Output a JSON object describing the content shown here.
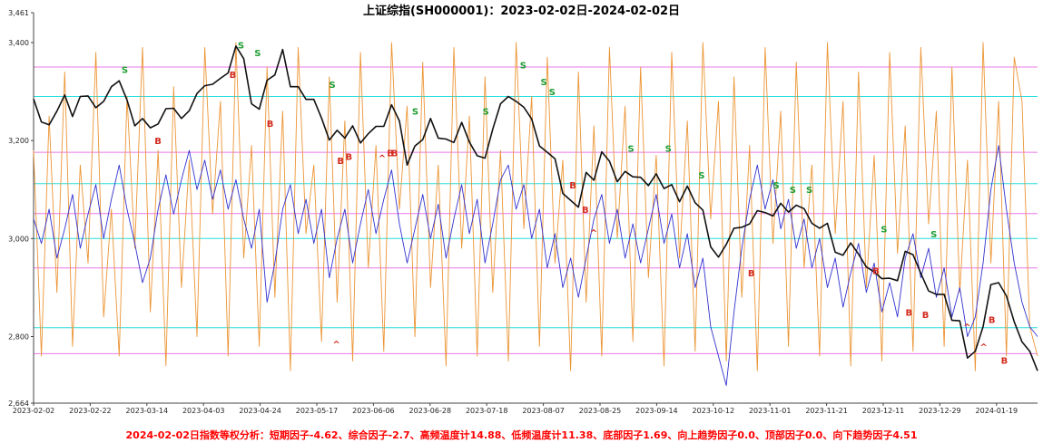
{
  "chart_data": {
    "type": "line",
    "title": "上证综指(SH000001)：2023-02-02日-2024-02-02日",
    "footer": "2024-02-02日指数等权分析：短期因子-4.62、综合因子-2.7、高频温度计14.88、低频温度计11.38、底部因子1.69、向上趋势因子0.0、顶部因子0.0、向下趋势因子4.51",
    "xlabel": "",
    "ylabel": "",
    "ylim": [
      2664,
      3461
    ],
    "x_domain_days": 242,
    "grid": "horizontal-reference-lines-only",
    "legend": "none",
    "colors": {
      "title": "#000000",
      "footer": "#ff0000",
      "axis": "#444444",
      "tick_text": "#222222"
    },
    "y_ticks": [
      {
        "label": "3,461",
        "value": 3461
      },
      {
        "label": "3,400",
        "value": 3400
      },
      {
        "label": "3,200",
        "value": 3200
      },
      {
        "label": "3,000",
        "value": 3000
      },
      {
        "label": "2,800",
        "value": 2800
      },
      {
        "label": "2,664",
        "value": 2664
      }
    ],
    "x_tick_labels": [
      "2023-02-02",
      "2023-02-22",
      "2023-03-14",
      "2023-04-03",
      "2023-04-24",
      "2023-05-17",
      "2023-06-06",
      "2023-06-28",
      "2023-07-18",
      "2023-08-07",
      "2023-08-25",
      "2023-09-14",
      "2023-10-12",
      "2023-11-01",
      "2023-11-21",
      "2023-12-11",
      "2023-12-29",
      "2024-01-19"
    ],
    "hlines": [
      {
        "name": "resistance-levels",
        "color": "#e879e8",
        "values": [
          3350,
          3176,
          3051,
          2940,
          2765
        ]
      },
      {
        "name": "support-levels",
        "color": "#2adede",
        "values": [
          3290,
          3112,
          3000,
          2818
        ]
      }
    ],
    "series": [
      {
        "name": "index-close",
        "color": "#111111",
        "width": 1.6,
        "values": [
          3285,
          3238,
          3232,
          3260,
          3293,
          3249,
          3290,
          3291,
          3267,
          3280,
          3310,
          3322,
          3283,
          3230,
          3245,
          3226,
          3234,
          3265,
          3266,
          3245,
          3261,
          3296,
          3312,
          3315,
          3327,
          3338,
          3393,
          3367,
          3275,
          3264,
          3323,
          3334,
          3386,
          3310,
          3310,
          3284,
          3284,
          3246,
          3201,
          3221,
          3205,
          3230,
          3195,
          3214,
          3229,
          3229,
          3273,
          3240,
          3150,
          3189,
          3202,
          3245,
          3205,
          3203,
          3196,
          3237,
          3197,
          3169,
          3164,
          3223,
          3275,
          3290,
          3280,
          3268,
          3244,
          3189,
          3176,
          3163,
          3092,
          3078,
          3064,
          3135,
          3119,
          3177,
          3158,
          3116,
          3137,
          3126,
          3125,
          3108,
          3132,
          3102,
          3110,
          3075,
          3107,
          3073,
          3058,
          2983,
          2962,
          2988,
          3021,
          3023,
          3030,
          3057,
          3053,
          3046,
          3072,
          3054,
          3068,
          3061,
          3031,
          3021,
          3031,
          2972,
          2966,
          2991,
          2968,
          2942,
          2932,
          2918,
          2919,
          2914,
          2974,
          2967,
          2929,
          2893,
          2886,
          2886,
          2833,
          2832,
          2756,
          2770,
          2820,
          2906,
          2910,
          2883,
          2830,
          2789,
          2770,
          2730
        ]
      },
      {
        "name": "low-freq-indicator",
        "color": "#3232cf",
        "width": 0.9,
        "values": [
          3040,
          2990,
          3060,
          2960,
          3020,
          3090,
          2980,
          3050,
          3110,
          3000,
          3080,
          3150,
          3060,
          2990,
          2910,
          2960,
          3060,
          3130,
          3050,
          3120,
          3180,
          3100,
          3160,
          3080,
          3140,
          3060,
          3120,
          3040,
          2980,
          3060,
          2870,
          2950,
          3060,
          3110,
          3010,
          3080,
          2990,
          3060,
          2920,
          3000,
          3060,
          2950,
          3030,
          3100,
          3010,
          3080,
          3140,
          3030,
          2950,
          3020,
          3090,
          3000,
          3070,
          2960,
          3040,
          3110,
          3010,
          3080,
          2950,
          3030,
          3120,
          3150,
          3060,
          3110,
          3000,
          3060,
          2940,
          3010,
          2900,
          2960,
          2880,
          2960,
          3040,
          3090,
          2990,
          3060,
          2960,
          3030,
          2950,
          3020,
          3090,
          2990,
          3050,
          2940,
          3010,
          2900,
          2960,
          2820,
          2760,
          2700,
          2850,
          2980,
          3080,
          3150,
          3060,
          3120,
          3020,
          3080,
          2980,
          3040,
          2940,
          3000,
          2900,
          2960,
          2860,
          2930,
          2990,
          2890,
          2950,
          2850,
          2910,
          2840,
          2960,
          3010,
          2920,
          2980,
          2880,
          2940,
          2840,
          2900,
          2800,
          2840,
          2950,
          3100,
          3190,
          3060,
          2950,
          2870,
          2820,
          2800
        ]
      },
      {
        "name": "high-freq-oscillator",
        "color": "#ec9535",
        "width": 0.9,
        "values": [
          3180,
          2760,
          3250,
          2890,
          3340,
          2780,
          3150,
          2950,
          3380,
          2840,
          3060,
          2760,
          3290,
          2980,
          3390,
          2850,
          3180,
          2740,
          3310,
          2900,
          3160,
          2800,
          3390,
          3050,
          3280,
          2760,
          3400,
          2960,
          3190,
          2780,
          3350,
          2880,
          3260,
          2730,
          3390,
          3010,
          3150,
          2790,
          3330,
          2870,
          3240,
          2750,
          3380,
          2940,
          3190,
          2770,
          3400,
          3060,
          3270,
          2800,
          3360,
          2900,
          3150,
          2740,
          3390,
          2980,
          3250,
          2760,
          3330,
          2890,
          3180,
          2750,
          3400,
          3020,
          3290,
          2780,
          3370,
          2950,
          3160,
          2730,
          3340,
          2870,
          3230,
          2760,
          3390,
          3000,
          3270,
          2790,
          3350,
          2920,
          3170,
          2740,
          3380,
          2960,
          3240,
          2770,
          3400,
          3040,
          3280,
          2750,
          3330,
          2880,
          3190,
          2730,
          3390,
          2990,
          3260,
          2780,
          3360,
          2940,
          3150,
          2760,
          3400,
          3010,
          3280,
          2740,
          3340,
          2900,
          3170,
          2750,
          3380,
          2970,
          3230,
          2770,
          3390,
          3030,
          3260,
          2780,
          3350,
          2890,
          3160,
          2730,
          3400,
          2950,
          3280,
          2760,
          3370,
          3280,
          2820,
          2760
        ]
      }
    ],
    "markers": [
      {
        "name": "sell-signal",
        "glyph": "S",
        "color": "#1f9e33",
        "points": [
          [
            22,
            3345
          ],
          [
            50,
            3395
          ],
          [
            54,
            3380
          ],
          [
            72,
            3315
          ],
          [
            92,
            3260
          ],
          [
            109,
            3260
          ],
          [
            118,
            3355
          ],
          [
            123,
            3320
          ],
          [
            125,
            3300
          ],
          [
            144,
            3185
          ],
          [
            153,
            3185
          ],
          [
            161,
            3130
          ],
          [
            179,
            3110
          ],
          [
            183,
            3100
          ],
          [
            187,
            3100
          ],
          [
            205,
            3020
          ],
          [
            217,
            3010
          ]
        ]
      },
      {
        "name": "buy-signal",
        "glyph": "B",
        "color": "#d42a1e",
        "points": [
          [
            30,
            3200
          ],
          [
            48,
            3335
          ],
          [
            57,
            3235
          ],
          [
            74,
            3160
          ],
          [
            76,
            3168
          ],
          [
            86,
            3175
          ],
          [
            87,
            3175
          ],
          [
            130,
            3110
          ],
          [
            133,
            3060
          ],
          [
            173,
            2930
          ],
          [
            203,
            2935
          ],
          [
            211,
            2850
          ],
          [
            215,
            2845
          ],
          [
            231,
            2835
          ],
          [
            234,
            2752
          ]
        ]
      },
      {
        "name": "bottom-caret-signal",
        "glyph": "^",
        "color": "#d42a1e",
        "points": [
          [
            73,
            2785
          ],
          [
            84,
            3165
          ],
          [
            135,
            3013
          ],
          [
            225,
            2820
          ],
          [
            229,
            2780
          ]
        ]
      }
    ]
  }
}
